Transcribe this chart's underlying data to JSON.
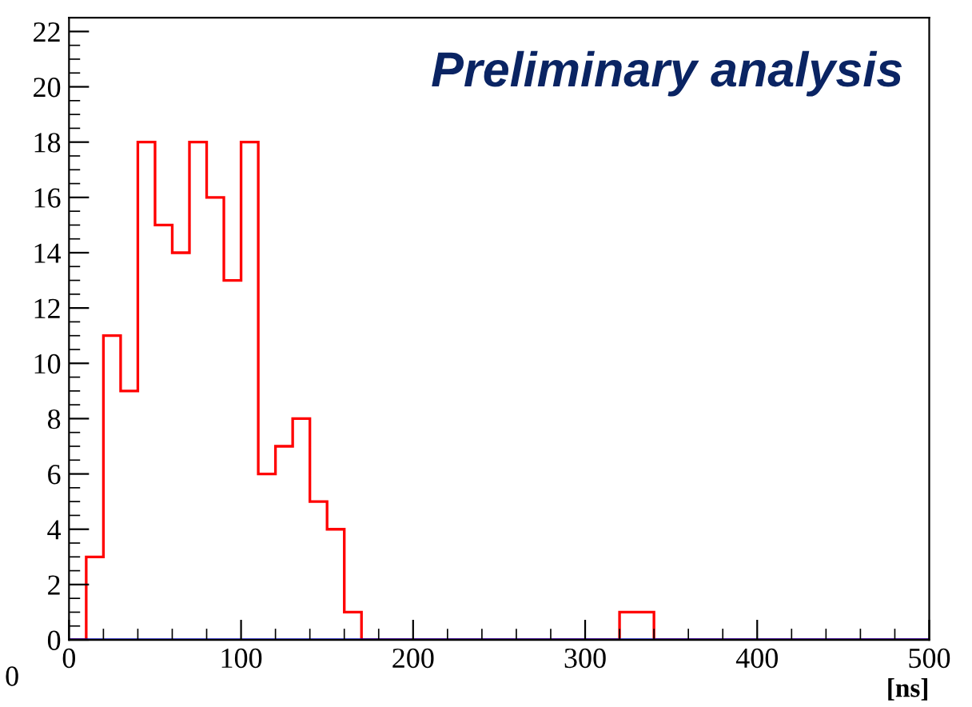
{
  "chart_data": {
    "type": "histogram",
    "xlabel": "[ns]",
    "annotations": [
      "Preliminary analysis",
      "0"
    ],
    "bins": [
      0,
      10,
      20,
      30,
      40,
      50,
      60,
      70,
      80,
      90,
      100,
      110,
      120,
      130,
      140,
      150,
      160,
      170,
      180,
      190,
      200,
      210,
      220,
      230,
      240,
      250,
      260,
      270,
      280,
      290,
      300,
      310,
      320,
      330,
      340,
      350,
      360,
      370,
      380,
      390,
      400,
      410,
      420,
      430,
      440,
      450,
      460,
      470,
      480,
      490,
      500
    ],
    "series": [
      {
        "color": "#ff0000",
        "values": [
          0,
          3,
          11,
          9,
          18,
          15,
          14,
          18,
          16,
          13,
          18,
          6,
          7,
          8,
          5,
          4,
          1,
          0,
          0,
          0,
          0,
          0,
          0,
          0,
          0,
          0,
          0,
          0,
          0,
          0,
          0,
          0,
          1,
          1,
          0,
          0,
          0,
          0,
          0,
          0,
          0,
          0,
          0,
          0,
          0,
          0,
          0,
          0,
          0,
          0
        ]
      },
      {
        "color": "#0000aa",
        "values": [
          0,
          0,
          0,
          0,
          0,
          0,
          0,
          0,
          0,
          0,
          0,
          0,
          0,
          0,
          0,
          0,
          0,
          0,
          0,
          0,
          0,
          0,
          0,
          0,
          0,
          0,
          0,
          0,
          0,
          0,
          0,
          0,
          0,
          0,
          0,
          0,
          0,
          0,
          0,
          0,
          0,
          0,
          0,
          0,
          0,
          0,
          0,
          0,
          0,
          0
        ]
      }
    ],
    "xlim": [
      0,
      500
    ],
    "xticks": [
      0,
      100,
      200,
      300,
      400,
      500
    ],
    "ylim": [
      0,
      22.5
    ],
    "yticks": [
      0,
      2,
      4,
      6,
      8,
      10,
      12,
      14,
      16,
      18,
      20,
      22
    ],
    "grid": false
  }
}
